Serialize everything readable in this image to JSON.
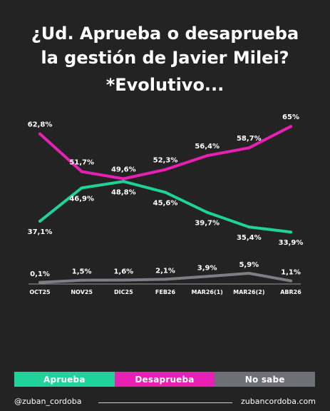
{
  "header": {
    "title_line1": "¿Ud. Aprueba o desaprueba",
    "title_line2": "la gestión de Javier Milei?",
    "subtitle": "*Evolutivo..."
  },
  "chart_data": {
    "type": "line",
    "categories": [
      "OCT25",
      "NOV25",
      "DIC25",
      "FEB26",
      "MAR26(1)",
      "MAR26(2)",
      "ABR26"
    ],
    "ylim": [
      0,
      70
    ],
    "grid": false,
    "legend_position": "bottom",
    "series": [
      {
        "name": "Aprueba",
        "color": "#1ed29a",
        "values": [
          37.1,
          46.9,
          48.8,
          45.6,
          39.7,
          35.4,
          33.9
        ],
        "labels": [
          "37,1%",
          "46,9%",
          "48,8%",
          "45,6%",
          "39,7%",
          "35,4%",
          "33,9%"
        ]
      },
      {
        "name": "Desaprueba",
        "color": "#e81fb3",
        "values": [
          62.8,
          51.7,
          49.6,
          52.3,
          56.4,
          58.7,
          65
        ],
        "labels": [
          "62,8%",
          "51,7%",
          "49,6%",
          "52,3%",
          "56,4%",
          "58,7%",
          "65%"
        ]
      },
      {
        "name": "No sabe",
        "color": "#7d7d86",
        "values": [
          0.1,
          1.5,
          1.6,
          2.1,
          3.9,
          5.9,
          1.1
        ],
        "labels": [
          "0,1%",
          "1,5%",
          "1,6%",
          "2,1%",
          "3,9%",
          "5,9%",
          "1,1%"
        ]
      }
    ]
  },
  "legend": {
    "aprueba": "Aprueba",
    "desaprueba": "Desaprueba",
    "no_sabe": "No sabe"
  },
  "footer": {
    "handle": "@zuban_cordoba",
    "website": "zubancordoba.com"
  }
}
